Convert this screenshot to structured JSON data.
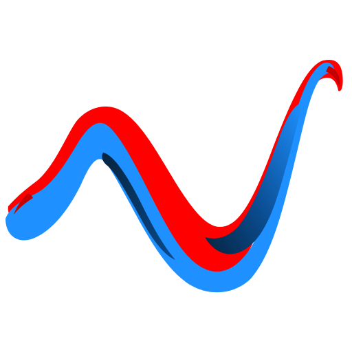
{
  "logo": {
    "icon": "ribbon-wave-logo",
    "colors": {
      "red": "#ff0000",
      "red_dark": "#c40000",
      "blue": "#1e90ff",
      "blue_dark": "#0a4a8c",
      "navy": "#06243f",
      "background": "#ffffff"
    }
  }
}
